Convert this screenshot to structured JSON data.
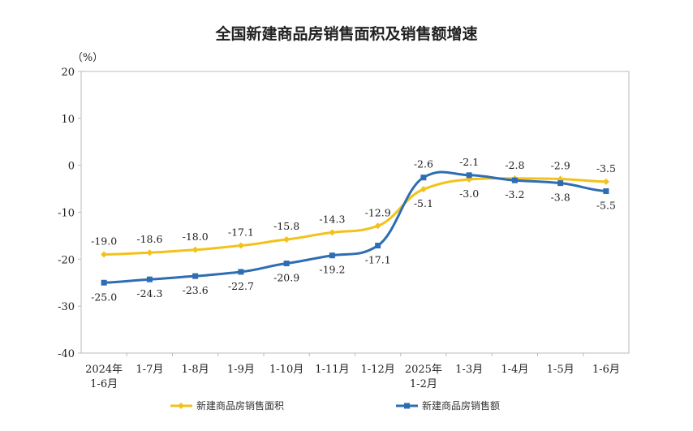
{
  "chart_data": {
    "type": "line",
    "title": "全国新建商品房销售面积及销售额增速",
    "ylabel": "（%）",
    "xlabel": "",
    "ylim": [
      -40,
      20
    ],
    "yticks": [
      20,
      10,
      0,
      -10,
      -20,
      -30,
      -40
    ],
    "categories": [
      [
        "2024年",
        "1-6月"
      ],
      [
        "1-7月"
      ],
      [
        "1-8月"
      ],
      [
        "1-9月"
      ],
      [
        "1-10月"
      ],
      [
        "1-11月"
      ],
      [
        "1-12月"
      ],
      [
        "2025年",
        "1-2月"
      ],
      [
        "1-3月"
      ],
      [
        "1-4月"
      ],
      [
        "1-5月"
      ],
      [
        "1-6月"
      ]
    ],
    "grid": false,
    "legend_position": "bottom",
    "series": [
      {
        "name": "新建商品房销售面积",
        "color": "#F2C21B",
        "values": [
          -19.0,
          -18.6,
          -18.0,
          -17.1,
          -15.8,
          -14.3,
          -12.9,
          -5.1,
          -3.0,
          -2.8,
          -2.9,
          -3.5
        ]
      },
      {
        "name": "新建商品房销售额",
        "color": "#2E6DB4",
        "values": [
          -25.0,
          -24.3,
          -23.6,
          -22.7,
          -20.9,
          -19.2,
          -17.1,
          -2.6,
          -2.1,
          -3.2,
          -3.8,
          -5.5
        ]
      }
    ]
  }
}
